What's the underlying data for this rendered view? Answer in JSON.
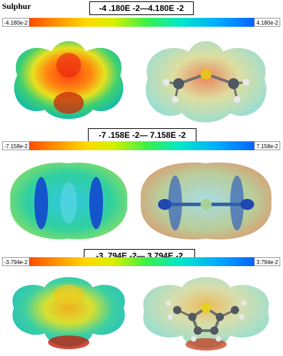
{
  "title": "Sulphur",
  "sections": [
    {
      "range_text": "-4 .180E -2—4.180E -2",
      "min_label": "-4.180e-2",
      "max_label": "4.180e-2"
    },
    {
      "range_text": "-7 .158E -2— 7.158E -2",
      "min_label": "-7.158e-2",
      "max_label": "7.158e-2"
    },
    {
      "range_text": "-3 .794E -2— 3.794E -2",
      "min_label": "-3.794e-2",
      "max_label": "3.794e-2"
    }
  ],
  "colors": {
    "negative": "#ff0000",
    "neutral": "#3cf04a",
    "positive": "#1030ff"
  }
}
